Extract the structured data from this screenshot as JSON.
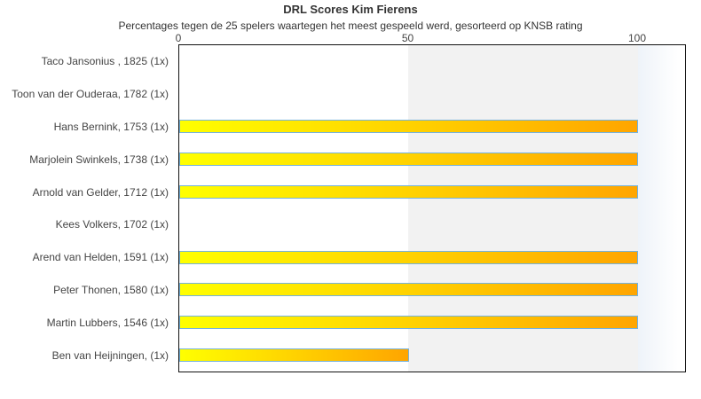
{
  "title": "DRL Scores Kim Fierens",
  "subtitle": "Percentages tegen de 25 spelers waartegen het meest gespeeld werd, gesorteerd op KNSB rating",
  "colors": {
    "bar_gradient_start": "#ffff00",
    "bar_gradient_end": "#ffa500",
    "bar_border": "#74b2dd",
    "band_left": "#ffffff",
    "band_mid": "#f2f2f2",
    "band_right": "#eef3f9",
    "plot_border": "#111111",
    "text": "#444444"
  },
  "chart_data": {
    "type": "bar",
    "orientation": "horizontal",
    "title": "DRL Scores Kim Fierens",
    "subtitle": "Percentages tegen de 25 spelers waartegen het meest gespeeld werd, gesorteerd op KNSB rating",
    "xlabel": "",
    "ylabel": "",
    "xlim": [
      0,
      110
    ],
    "grid": false,
    "legend": "none",
    "ticks": [
      {
        "value": 0,
        "label": "0"
      },
      {
        "value": 50,
        "label": "50"
      },
      {
        "value": 100,
        "label": "100"
      }
    ],
    "players": [
      {
        "label": "Taco Jansonius , 1825 (1x)",
        "name": "Taco Jansonius",
        "rating": 1825,
        "games": "1x",
        "value": 0
      },
      {
        "label": "Toon van der Ouderaa, 1782 (1x)",
        "name": "Toon van der Ouderaa",
        "rating": 1782,
        "games": "1x",
        "value": 0
      },
      {
        "label": "Hans Bernink, 1753 (1x)",
        "name": "Hans Bernink",
        "rating": 1753,
        "games": "1x",
        "value": 100
      },
      {
        "label": "Marjolein Swinkels, 1738 (1x)",
        "name": "Marjolein Swinkels",
        "rating": 1738,
        "games": "1x",
        "value": 100
      },
      {
        "label": "Arnold van Gelder, 1712 (1x)",
        "name": "Arnold van Gelder",
        "rating": 1712,
        "games": "1x",
        "value": 100
      },
      {
        "label": "Kees Volkers, 1702 (1x)",
        "name": "Kees Volkers",
        "rating": 1702,
        "games": "1x",
        "value": 0
      },
      {
        "label": "Arend van Helden, 1591 (1x)",
        "name": "Arend van Helden",
        "rating": 1591,
        "games": "1x",
        "value": 100
      },
      {
        "label": "Peter Thonen, 1580 (1x)",
        "name": "Peter Thonen",
        "rating": 1580,
        "games": "1x",
        "value": 100
      },
      {
        "label": "Martin Lubbers, 1546 (1x)",
        "name": "Martin Lubbers",
        "rating": 1546,
        "games": "1x",
        "value": 100
      },
      {
        "label": "Ben van Heijningen,  (1x)",
        "name": "Ben van Heijningen",
        "rating": null,
        "games": "1x",
        "value": 50
      }
    ]
  }
}
